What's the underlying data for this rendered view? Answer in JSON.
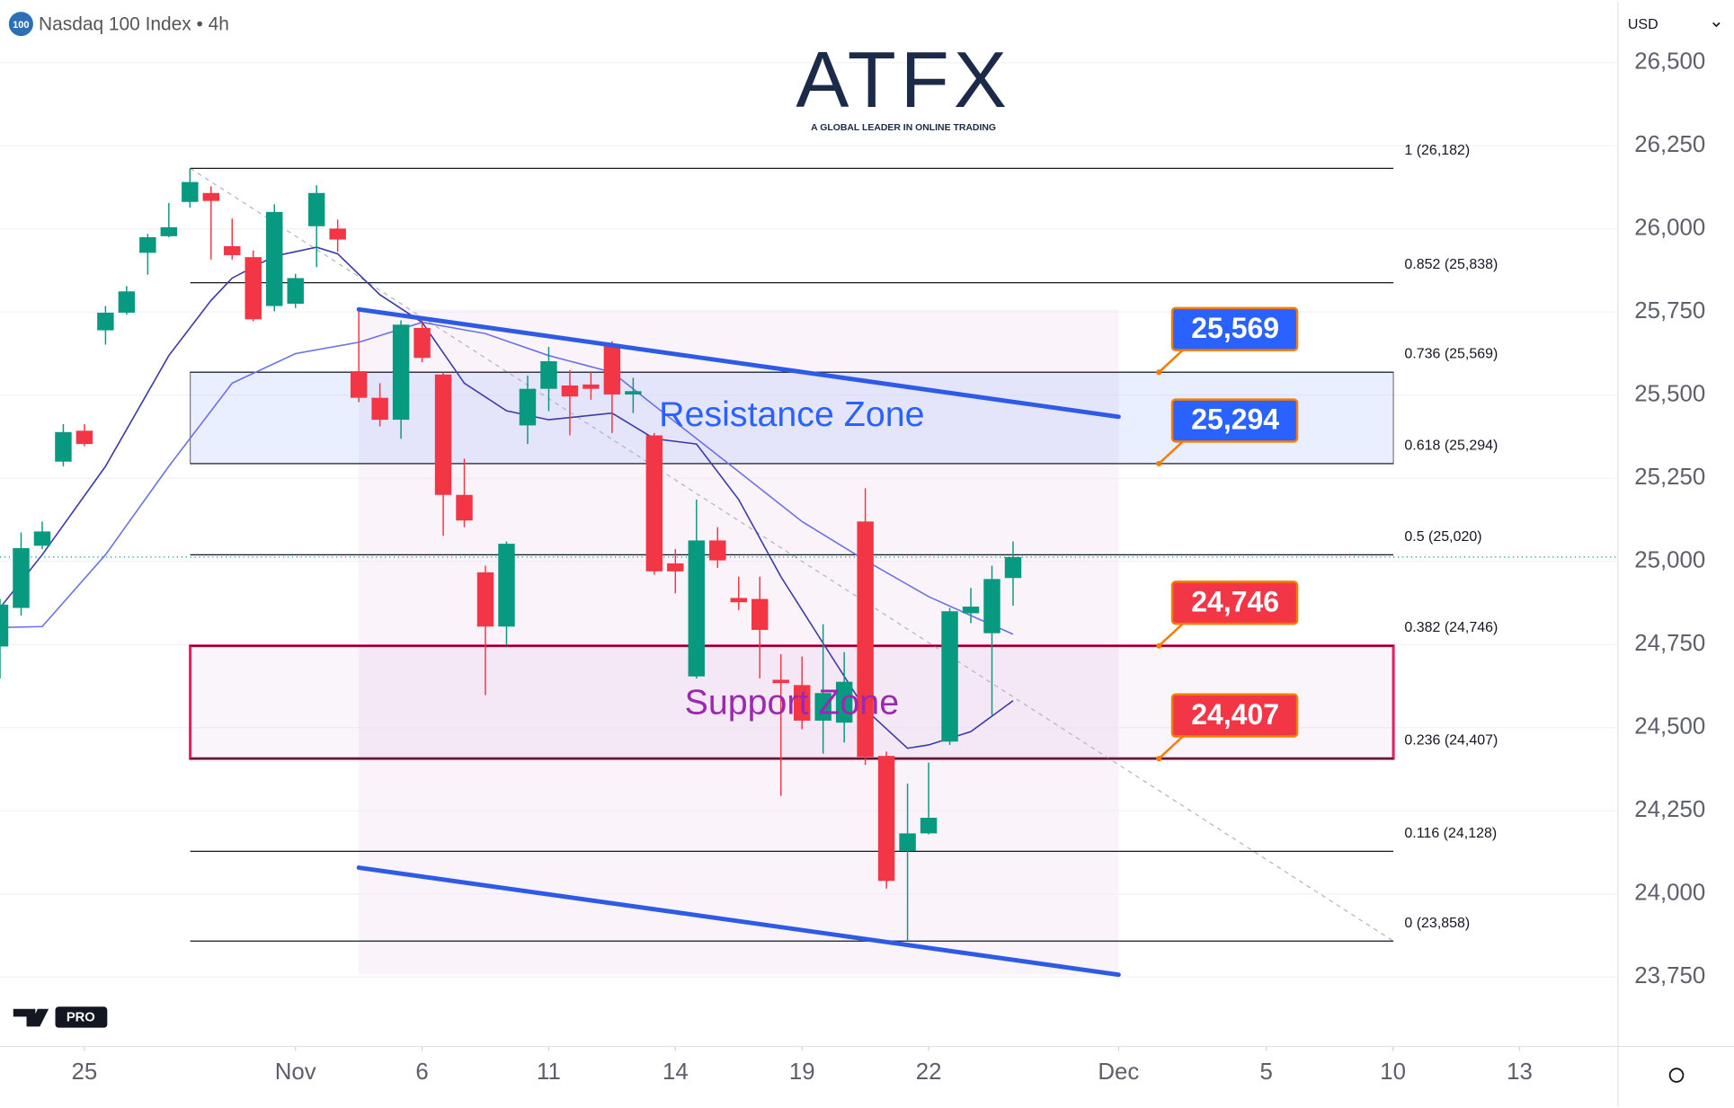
{
  "chart_data": {
    "type": "candlestick",
    "title": "Nasdaq 100 Index • 4h",
    "symbol_badge": "100",
    "currency": "USD",
    "brand": {
      "name": "ATFX",
      "tagline": "A GLOBAL LEADER IN ONLINE TRADING",
      "platform_badge": "PRO"
    },
    "up_color": "#089981",
    "down_color": "#f23645",
    "candles": {
      "x": [
        0,
        1,
        2,
        3,
        4,
        5,
        6,
        7,
        8,
        9,
        10,
        11,
        12,
        13,
        14,
        15,
        16,
        17,
        18,
        19,
        20,
        21,
        22,
        23,
        24,
        25,
        26,
        27,
        28,
        29,
        30,
        31,
        32,
        33,
        34,
        35,
        36,
        37,
        38,
        39,
        40,
        41,
        42,
        43,
        44,
        45,
        46,
        47,
        48
      ],
      "open": [
        24744,
        24860,
        25047,
        25300,
        25393,
        25695,
        25748,
        25928,
        25978,
        26081,
        26108,
        25948,
        25915,
        25768,
        25775,
        26008,
        26001,
        25572,
        25492,
        25426,
        25702,
        25562,
        25200,
        24967,
        24804,
        25409,
        25519,
        25529,
        25532,
        25652,
        25502,
        25379,
        24994,
        24654,
        25063,
        24890,
        24887,
        24644,
        24628,
        24521,
        24515,
        25120,
        24415,
        24129,
        24182,
        24458,
        24844,
        24784,
        24950
      ],
      "high": [
        24887,
        25087,
        25120,
        25413,
        25413,
        25768,
        25828,
        25985,
        26078,
        26182,
        26128,
        26031,
        25935,
        26074,
        25865,
        26131,
        26028,
        25758,
        25536,
        25725,
        25735,
        25569,
        25309,
        24987,
        25060,
        25559,
        25645,
        25575,
        25569,
        25662,
        25552,
        25386,
        25037,
        25186,
        25103,
        24954,
        24954,
        24721,
        24714,
        24811,
        24727,
        25220,
        24428,
        24332,
        24395,
        24860,
        24920,
        24987,
        25060
      ],
      "low": [
        24648,
        24837,
        25037,
        25286,
        25346,
        25652,
        25742,
        25862,
        25975,
        26064,
        25908,
        25908,
        25722,
        25752,
        25762,
        25885,
        25931,
        25479,
        25406,
        25369,
        25599,
        25077,
        25103,
        24598,
        24747,
        25353,
        25452,
        25379,
        25486,
        25386,
        25446,
        24960,
        24904,
        24648,
        24980,
        24854,
        24648,
        24295,
        24495,
        24422,
        24455,
        24388,
        24016,
        23858,
        24179,
        24448,
        24814,
        24538,
        24867
      ],
      "close": [
        24870,
        25040,
        25090,
        25389,
        25353,
        25748,
        25812,
        25975,
        26005,
        26141,
        26084,
        25921,
        25728,
        26051,
        25852,
        26108,
        25968,
        25492,
        25426,
        25712,
        25612,
        25200,
        25123,
        24804,
        25053,
        25519,
        25602,
        25496,
        25519,
        25502,
        25512,
        24970,
        24970,
        25063,
        25003,
        24877,
        24794,
        24634,
        24521,
        24604,
        24638,
        24412,
        24039,
        24182,
        24229,
        24850,
        24864,
        24947,
        25013
      ]
    },
    "series": [
      {
        "color": "#6a72e6",
        "x": [
          0,
          2,
          5,
          8,
          11,
          14,
          17,
          20,
          23,
          26,
          29,
          32,
          35,
          38,
          41,
          44,
          46,
          48
        ],
        "values": [
          24801,
          24804,
          25020,
          25286,
          25536,
          25625,
          25659,
          25719,
          25685,
          25619,
          25569,
          25419,
          25270,
          25120,
          25003,
          24894,
          24837,
          24781
        ]
      },
      {
        "color": "#3a3aa8",
        "x": [
          0,
          2,
          5,
          8,
          10,
          11,
          13,
          15,
          16,
          18,
          20,
          22,
          24,
          26,
          29,
          31,
          33,
          35,
          37,
          39,
          41,
          43,
          44,
          46,
          48
        ],
        "values": [
          24860,
          25020,
          25286,
          25619,
          25785,
          25852,
          25918,
          25945,
          25925,
          25802,
          25719,
          25536,
          25453,
          25426,
          25446,
          25369,
          25353,
          25186,
          24954,
          24754,
          24555,
          24438,
          24448,
          24488,
          24581
        ]
      }
    ],
    "fib_levels": [
      {
        "label": "1 (26,182)",
        "value": 26182
      },
      {
        "label": "0.852 (25,838)",
        "value": 25838
      },
      {
        "label": "0.736 (25,569)",
        "value": 25569
      },
      {
        "label": "0.618 (25,294)",
        "value": 25294
      },
      {
        "label": "0.5 (25,020)",
        "value": 25020
      },
      {
        "label": "0.382 (24,746)",
        "value": 24746
      },
      {
        "label": "0.236 (24,407)",
        "value": 24407
      },
      {
        "label": "0.116 (24,128)",
        "value": 24128
      },
      {
        "label": "0 (23,858)",
        "value": 23858
      }
    ],
    "zones": [
      {
        "label": "Resistance Zone",
        "from": 25294,
        "to": 25569,
        "color": "#2962ff"
      },
      {
        "label": "Support Zone",
        "from": 24407,
        "to": 24746,
        "color": "#9c27b0"
      }
    ],
    "price_tags": {
      "values": [
        25569,
        25294,
        24746,
        24407
      ],
      "value_labels": [
        "25,569",
        "25,294",
        "24,746",
        "24,407"
      ],
      "colors": [
        "#2962ff",
        "#2962ff",
        "#f23645",
        "#f23645"
      ]
    },
    "channel": {
      "x": [
        17,
        53
      ],
      "upper": [
        25758,
        25435
      ],
      "lower": [
        24079,
        23757
      ],
      "color": "#2e5be6"
    },
    "xlim": [
      0,
      76.5
    ],
    "xticks": [
      {
        "value": 4,
        "label": "25"
      },
      {
        "value": 14,
        "label": "Nov"
      },
      {
        "value": 20,
        "label": "6"
      },
      {
        "value": 26,
        "label": "11"
      },
      {
        "value": 32,
        "label": "14"
      },
      {
        "value": 38,
        "label": "19"
      },
      {
        "value": 44,
        "label": "22"
      },
      {
        "value": 53,
        "label": "Dec"
      },
      {
        "value": 60,
        "label": "5"
      },
      {
        "value": 66,
        "label": "10"
      },
      {
        "value": 72,
        "label": "13"
      }
    ],
    "ylim": [
      23541,
      26683
    ],
    "yticks": [
      {
        "value": 23750,
        "label": "23,750"
      },
      {
        "value": 24000,
        "label": "24,000"
      },
      {
        "value": 24250,
        "label": "24,250"
      },
      {
        "value": 24500,
        "label": "24,500"
      },
      {
        "value": 24750,
        "label": "24,750"
      },
      {
        "value": 25000,
        "label": "25,000"
      },
      {
        "value": 25250,
        "label": "25,250"
      },
      {
        "value": 25500,
        "label": "25,500"
      },
      {
        "value": 25750,
        "label": "25,750"
      },
      {
        "value": 26000,
        "label": "26,000"
      },
      {
        "value": 26250,
        "label": "26,250"
      },
      {
        "value": 26500,
        "label": "26,500"
      }
    ],
    "grid": true
  }
}
